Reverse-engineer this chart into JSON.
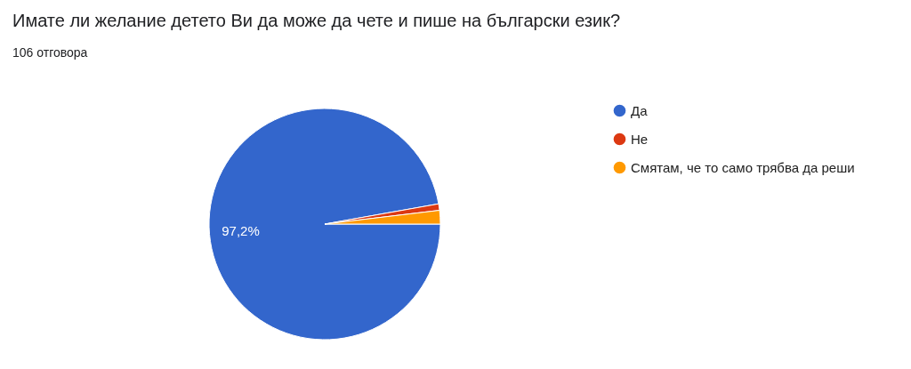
{
  "chart_data": {
    "type": "pie",
    "title": "Имате ли желание детето Ви да може да чете и пише на български език?",
    "subtitle": "106 отговора",
    "categories": [
      "Да",
      "Не",
      "Смятам, че то само трябва да реши"
    ],
    "values": [
      97.2,
      0.9,
      1.9
    ],
    "colors": [
      "#3366cc",
      "#dc3912",
      "#ff9900"
    ],
    "value_labels": [
      "97,2%",
      null,
      null
    ],
    "legend": "right"
  }
}
